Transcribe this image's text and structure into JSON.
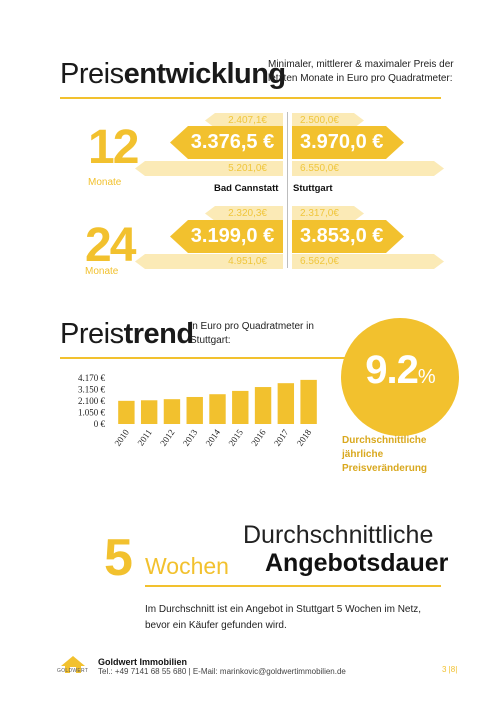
{
  "section1": {
    "title_light": "Preis",
    "title_bold": "entwicklung",
    "subtitle": "Minimaler, mittlerer & maximaler Preis der letzten Monate in Euro pro Quadratmeter:",
    "rows": [
      {
        "number": "12",
        "unit": "Monate",
        "left_min": "2.407,1€",
        "left_mean": "3.376,5 €",
        "left_max": "5.201,0€",
        "right_min": "2.500,0€",
        "right_mean": "3.970,0 €",
        "right_max": "6.550,0€"
      },
      {
        "number": "24",
        "unit": "Monate",
        "left_min": "2.320,3€",
        "left_mean": "3.199,0 €",
        "left_max": "4.951,0€",
        "right_min": "2.317,0€",
        "right_mean": "3.853,0 €",
        "right_max": "6.562,0€"
      }
    ],
    "city_left": "Bad Cannstatt",
    "city_right": "Stuttgart"
  },
  "section2": {
    "title_light": "Preis",
    "title_bold": "trend",
    "subtitle": "in Euro pro Quadratmeter in Stuttgart:",
    "percent_value": "9.2",
    "percent_sign": "%",
    "circle_caption_1": "Durchschnittliche",
    "circle_caption_2": "jährliche",
    "circle_caption_3": "Preisveränderung"
  },
  "chart_data": {
    "type": "bar",
    "categories": [
      "2010",
      "2011",
      "2012",
      "2013",
      "2014",
      "2015",
      "2016",
      "2017",
      "2018"
    ],
    "values": [
      2100,
      2150,
      2250,
      2450,
      2700,
      3000,
      3350,
      3700,
      4000
    ],
    "ytick_labels": [
      "4.170 €",
      "3.150 €",
      "2.100 €",
      "1.050 €",
      "0 €"
    ],
    "yticks": [
      4170,
      3150,
      2100,
      1050,
      0
    ],
    "ylim": [
      0,
      4170
    ],
    "color": "#f2c12e"
  },
  "section3": {
    "number": "5",
    "unit": "Wochen",
    "heading_1": "Durchschnittliche",
    "heading_2": "Angebotsdauer",
    "paragraph": "Im Durchschnitt ist ein Angebot in Stuttgart 5 Wochen im Netz, bevor ein Käufer gefunden wird."
  },
  "footer": {
    "logo_text": "GOLDWERT",
    "company": "Goldwert Immobilien",
    "contact": "Tel.: +49 7141 68 55 680 | E-Mail: marinkovic@goldwertimmobilien.de",
    "page": "3 |8|"
  }
}
